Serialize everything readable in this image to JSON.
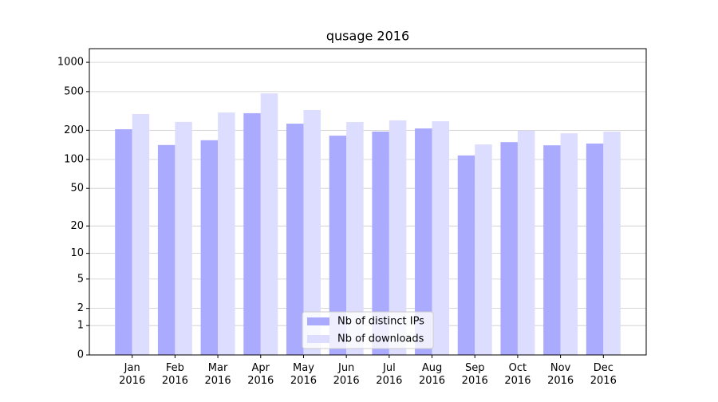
{
  "chart_data": {
    "type": "bar",
    "title": "qusage 2016",
    "categories": [
      "Jan 2016",
      "Feb 2016",
      "Mar 2016",
      "Apr 2016",
      "May 2016",
      "Jun 2016",
      "Jul 2016",
      "Aug 2016",
      "Sep 2016",
      "Oct 2016",
      "Nov 2016",
      "Dec 2016"
    ],
    "series": [
      {
        "name": "Nb of distinct IPs",
        "color": "#aaaaff",
        "values": [
          205,
          141,
          158,
          300,
          234,
          176,
          194,
          209,
          110,
          151,
          140,
          146
        ]
      },
      {
        "name": "Nb of downloads",
        "color": "#ddddff",
        "values": [
          294,
          244,
          305,
          480,
          323,
          243,
          253,
          248,
          143,
          198,
          186,
          194
        ]
      }
    ],
    "yscale": "log1p",
    "ylim": [
      0,
      1380
    ],
    "yticks": [
      0,
      1,
      2,
      5,
      10,
      20,
      50,
      100,
      200,
      500,
      1000
    ],
    "grid": true,
    "legend": "lower center"
  }
}
